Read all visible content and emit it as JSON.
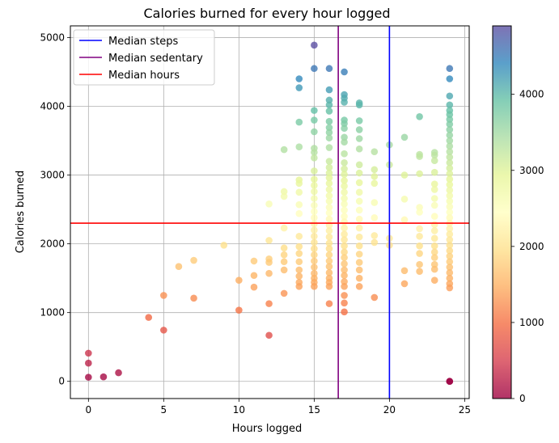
{
  "chart_data": {
    "type": "scatter",
    "title": "Calories burned for every hour logged",
    "xlabel": "Hours logged",
    "ylabel": "Calories burned",
    "xlim": [
      -1.2,
      25.3
    ],
    "ylim": [
      -250,
      5170
    ],
    "x_ticks": [
      0,
      5,
      10,
      15,
      20,
      25
    ],
    "y_ticks": [
      0,
      1000,
      2000,
      3000,
      4000,
      5000
    ],
    "grid": true,
    "colormap": "Spectral",
    "color_by": "Calories burned",
    "color_range": [
      0,
      4900
    ],
    "colorbar_ticks": [
      0,
      1000,
      2000,
      3000,
      4000
    ],
    "legend_position": "top-left",
    "reference_lines": [
      {
        "name": "Median steps",
        "orientation": "vertical",
        "value": 20.0,
        "color": "#0000ff"
      },
      {
        "name": "Median sedentary",
        "orientation": "vertical",
        "value": 16.6,
        "color": "#800080"
      },
      {
        "name": "Median hours",
        "orientation": "horizontal",
        "value": 2300,
        "color": "#ff0000"
      }
    ],
    "points": [
      [
        0,
        410
      ],
      [
        0,
        265
      ],
      [
        0,
        60
      ],
      [
        1,
        65
      ],
      [
        2,
        125
      ],
      [
        4,
        930
      ],
      [
        5,
        1250
      ],
      [
        5,
        745
      ],
      [
        6,
        1670
      ],
      [
        7,
        1760
      ],
      [
        7,
        1210
      ],
      [
        9,
        1980
      ],
      [
        10,
        1470
      ],
      [
        10,
        1035
      ],
      [
        11,
        1750
      ],
      [
        11,
        1540
      ],
      [
        11,
        1370
      ],
      [
        12,
        2580
      ],
      [
        12,
        2050
      ],
      [
        12,
        1780
      ],
      [
        12,
        1730
      ],
      [
        12,
        1570
      ],
      [
        12,
        1130
      ],
      [
        12,
        670
      ],
      [
        13,
        3370
      ],
      [
        13,
        2760
      ],
      [
        13,
        2690
      ],
      [
        13,
        2230
      ],
      [
        13,
        1940
      ],
      [
        13,
        1840
      ],
      [
        13,
        1740
      ],
      [
        13,
        1620
      ],
      [
        13,
        1280
      ],
      [
        14,
        4400
      ],
      [
        14,
        4270
      ],
      [
        14,
        3770
      ],
      [
        14,
        3410
      ],
      [
        14,
        2930
      ],
      [
        14,
        2880
      ],
      [
        14,
        2750
      ],
      [
        14,
        2570
      ],
      [
        14,
        2440
      ],
      [
        14,
        2110
      ],
      [
        14,
        1960
      ],
      [
        14,
        1860
      ],
      [
        14,
        1740
      ],
      [
        14,
        1620
      ],
      [
        14,
        1530
      ],
      [
        14,
        1440
      ],
      [
        14,
        1380
      ],
      [
        15,
        4890
      ],
      [
        15,
        4550
      ],
      [
        15,
        3940
      ],
      [
        15,
        3800
      ],
      [
        15,
        3630
      ],
      [
        15,
        3390
      ],
      [
        15,
        3330
      ],
      [
        15,
        3250
      ],
      [
        15,
        3060
      ],
      [
        15,
        2940
      ],
      [
        15,
        2850
      ],
      [
        15,
        2760
      ],
      [
        15,
        2660
      ],
      [
        15,
        2560
      ],
      [
        15,
        2470
      ],
      [
        15,
        2380
      ],
      [
        15,
        2290
      ],
      [
        15,
        2200
      ],
      [
        15,
        2110
      ],
      [
        15,
        2020
      ],
      [
        15,
        1930
      ],
      [
        15,
        1840
      ],
      [
        15,
        1750
      ],
      [
        15,
        1660
      ],
      [
        15,
        1570
      ],
      [
        15,
        1500
      ],
      [
        15,
        1440
      ],
      [
        15,
        1380
      ],
      [
        16,
        4550
      ],
      [
        16,
        4240
      ],
      [
        16,
        4090
      ],
      [
        16,
        4020
      ],
      [
        16,
        3930
      ],
      [
        16,
        3780
      ],
      [
        16,
        3690
      ],
      [
        16,
        3620
      ],
      [
        16,
        3540
      ],
      [
        16,
        3400
      ],
      [
        16,
        3200
      ],
      [
        16,
        3110
      ],
      [
        16,
        3030
      ],
      [
        16,
        2960
      ],
      [
        16,
        2880
      ],
      [
        16,
        2790
      ],
      [
        16,
        2700
      ],
      [
        16,
        2620
      ],
      [
        16,
        2530
      ],
      [
        16,
        2450
      ],
      [
        16,
        2360
      ],
      [
        16,
        2270
      ],
      [
        16,
        2190
      ],
      [
        16,
        2100
      ],
      [
        16,
        2010
      ],
      [
        16,
        1930
      ],
      [
        16,
        1840
      ],
      [
        16,
        1750
      ],
      [
        16,
        1670
      ],
      [
        16,
        1580
      ],
      [
        16,
        1500
      ],
      [
        16,
        1440
      ],
      [
        16,
        1380
      ],
      [
        16,
        1130
      ],
      [
        17,
        4500
      ],
      [
        17,
        4170
      ],
      [
        17,
        4120
      ],
      [
        17,
        4060
      ],
      [
        17,
        3800
      ],
      [
        17,
        3750
      ],
      [
        17,
        3680
      ],
      [
        17,
        3550
      ],
      [
        17,
        3480
      ],
      [
        17,
        3310
      ],
      [
        17,
        3180
      ],
      [
        17,
        3090
      ],
      [
        17,
        3010
      ],
      [
        17,
        2920
      ],
      [
        17,
        2840
      ],
      [
        17,
        2750
      ],
      [
        17,
        2660
      ],
      [
        17,
        2580
      ],
      [
        17,
        2490
      ],
      [
        17,
        2400
      ],
      [
        17,
        2320
      ],
      [
        17,
        2230
      ],
      [
        17,
        2140
      ],
      [
        17,
        2060
      ],
      [
        17,
        1970
      ],
      [
        17,
        1880
      ],
      [
        17,
        1800
      ],
      [
        17,
        1710
      ],
      [
        17,
        1620
      ],
      [
        17,
        1540
      ],
      [
        17,
        1450
      ],
      [
        17,
        1380
      ],
      [
        17,
        1250
      ],
      [
        17,
        1140
      ],
      [
        17,
        1010
      ],
      [
        18,
        4050
      ],
      [
        18,
        4020
      ],
      [
        18,
        3790
      ],
      [
        18,
        3660
      ],
      [
        18,
        3530
      ],
      [
        18,
        3380
      ],
      [
        18,
        3150
      ],
      [
        18,
        3030
      ],
      [
        18,
        2890
      ],
      [
        18,
        2750
      ],
      [
        18,
        2620
      ],
      [
        18,
        2490
      ],
      [
        18,
        2360
      ],
      [
        18,
        2230
      ],
      [
        18,
        2100
      ],
      [
        18,
        1970
      ],
      [
        18,
        1850
      ],
      [
        18,
        1730
      ],
      [
        18,
        1620
      ],
      [
        18,
        1500
      ],
      [
        18,
        1380
      ],
      [
        19,
        3340
      ],
      [
        19,
        3080
      ],
      [
        19,
        2980
      ],
      [
        19,
        2880
      ],
      [
        19,
        2600
      ],
      [
        19,
        2380
      ],
      [
        19,
        2120
      ],
      [
        19,
        2020
      ],
      [
        19,
        1220
      ],
      [
        20,
        3440
      ],
      [
        20,
        3150
      ],
      [
        20,
        2080
      ],
      [
        20,
        1980
      ],
      [
        21,
        3550
      ],
      [
        21,
        3000
      ],
      [
        21,
        2650
      ],
      [
        21,
        2350
      ],
      [
        21,
        1610
      ],
      [
        21,
        1420
      ],
      [
        22,
        3850
      ],
      [
        22,
        3300
      ],
      [
        22,
        3270
      ],
      [
        22,
        3020
      ],
      [
        22,
        2530
      ],
      [
        22,
        2460
      ],
      [
        22,
        2220
      ],
      [
        22,
        2110
      ],
      [
        22,
        1970
      ],
      [
        22,
        1860
      ],
      [
        22,
        1700
      ],
      [
        22,
        1600
      ],
      [
        23,
        3330
      ],
      [
        23,
        3290
      ],
      [
        23,
        3210
      ],
      [
        23,
        3040
      ],
      [
        23,
        2870
      ],
      [
        23,
        2790
      ],
      [
        23,
        2660
      ],
      [
        23,
        2560
      ],
      [
        23,
        2400
      ],
      [
        23,
        2280
      ],
      [
        23,
        2190
      ],
      [
        23,
        2080
      ],
      [
        23,
        1970
      ],
      [
        23,
        1880
      ],
      [
        23,
        1800
      ],
      [
        23,
        1700
      ],
      [
        23,
        1630
      ],
      [
        23,
        1470
      ],
      [
        24,
        4550
      ],
      [
        24,
        4400
      ],
      [
        24,
        4150
      ],
      [
        24,
        4020
      ],
      [
        24,
        3940
      ],
      [
        24,
        3880
      ],
      [
        24,
        3810
      ],
      [
        24,
        3740
      ],
      [
        24,
        3660
      ],
      [
        24,
        3580
      ],
      [
        24,
        3500
      ],
      [
        24,
        3420
      ],
      [
        24,
        3340
      ],
      [
        24,
        3260
      ],
      [
        24,
        3180
      ],
      [
        24,
        3100
      ],
      [
        24,
        3020
      ],
      [
        24,
        2940
      ],
      [
        24,
        2860
      ],
      [
        24,
        2780
      ],
      [
        24,
        2700
      ],
      [
        24,
        2620
      ],
      [
        24,
        2540
      ],
      [
        24,
        2460
      ],
      [
        24,
        2380
      ],
      [
        24,
        2300
      ],
      [
        24,
        2220
      ],
      [
        24,
        2140
      ],
      [
        24,
        2060
      ],
      [
        24,
        1980
      ],
      [
        24,
        1900
      ],
      [
        24,
        1820
      ],
      [
        24,
        1740
      ],
      [
        24,
        1660
      ],
      [
        24,
        1580
      ],
      [
        24,
        1500
      ],
      [
        24,
        1420
      ],
      [
        24,
        1360
      ],
      [
        24,
        0
      ],
      [
        24,
        0
      ]
    ]
  }
}
